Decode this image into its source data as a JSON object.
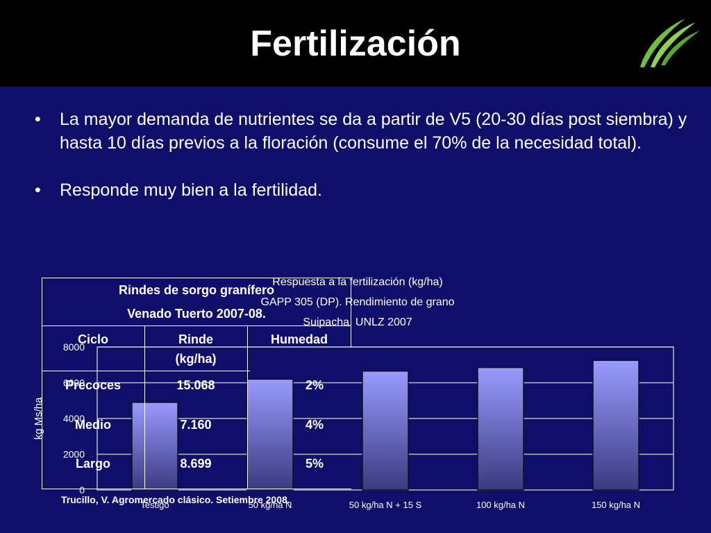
{
  "title": "Fertilización",
  "bullets": [
    "La mayor demanda de nutrientes se da a partir de V5 (20-30 días post siembra) y hasta 10 días previos a la floración (consume el 70% de la necesidad total).",
    "Responde muy bien a la fertilidad."
  ],
  "bullet_symbol": "•",
  "table": {
    "title_line1": "Rindes de sorgo granífero",
    "title_line2": "Venado Tuerto 2007-08.",
    "headers": [
      "Ciclo",
      "Rinde",
      "(kg/ha)",
      "Humedad"
    ],
    "rows": [
      {
        "ciclo": "Precoces",
        "rinde": "15.068",
        "humedad": "2%"
      },
      {
        "ciclo": "Medio",
        "rinde": "7.160",
        "humedad": "4%"
      },
      {
        "ciclo": "Largo",
        "rinde": "8.699",
        "humedad": "5%"
      }
    ]
  },
  "source": "Trucillo, V. Agromercado clásico. Setiembre 2008.",
  "colors": {
    "background": "#0f0f6a",
    "titlebar": "#000000",
    "bar_top": "#9a9aff",
    "bar_bottom": "#3a3a80",
    "logo": "#6fbf3a"
  },
  "chart_data": {
    "type": "bar",
    "title": [
      "Respuesta a la fertilización (kg/ha)",
      "GAPP 305 (DP). Rendimiento de grano",
      "Suipacha. UNLZ 2007"
    ],
    "ylabel": "kg Ms/ha",
    "xlabel": "",
    "ylim": [
      0,
      8000
    ],
    "yticks": [
      0,
      2000,
      4000,
      6000,
      8000
    ],
    "categories": [
      "Testigo",
      "50 kg/ha N",
      "50 kg/ha N + 15 S",
      "100 kg/ha N",
      "150 kg/ha N"
    ],
    "values": [
      4900,
      6200,
      6650,
      6850,
      7250
    ],
    "grid": true
  }
}
